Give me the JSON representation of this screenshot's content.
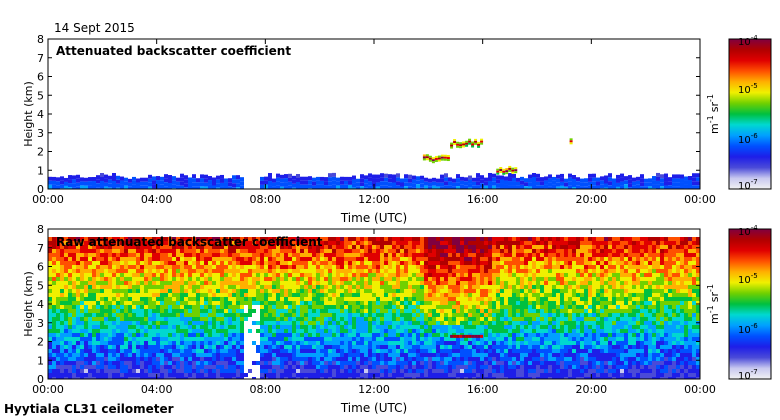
{
  "header": {
    "date": "14 Sept 2015"
  },
  "footer": {
    "site": "Hyytiala CL31 ceilometer"
  },
  "colormap": [
    "#f2f2f2",
    "#c8c8f0",
    "#4a4ad8",
    "#1e1ee8",
    "#0050ff",
    "#00a0ff",
    "#00d8d0",
    "#00c040",
    "#70d000",
    "#f0f000",
    "#ffb000",
    "#ff5000",
    "#e00000",
    "#b00000",
    "#800040"
  ],
  "chart_data": [
    {
      "type": "heatmap",
      "title": "Attenuated backscatter coefficient",
      "xlabel": "Time (UTC)",
      "ylabel": "Height (km)",
      "x_ticks": [
        "00:00",
        "04:00",
        "08:00",
        "12:00",
        "16:00",
        "20:00",
        "00:00"
      ],
      "y_ticks": [
        "0",
        "1",
        "2",
        "3",
        "4",
        "5",
        "6",
        "7",
        "8"
      ],
      "ylim": [
        0,
        8
      ],
      "xlim_hours": [
        0,
        24
      ],
      "colorbar": {
        "label_unit": "m",
        "label_unit_exp": "-1",
        "label_sr": "sr",
        "label_sr_exp": "-1",
        "ticks": [
          "10",
          "10",
          "10",
          "10"
        ],
        "tick_exps": [
          "-7",
          "-6",
          "-5",
          "-4"
        ],
        "scale": "log",
        "range": [
          "1e-7",
          "1e-4"
        ]
      },
      "features": [
        {
          "kind": "boundary-layer",
          "height_km": 0.7,
          "hours": [
            0,
            24
          ]
        },
        {
          "kind": "cloud",
          "height_km": 2.4,
          "hours": [
            14.8,
            16.0
          ]
        },
        {
          "kind": "cloud",
          "height_km": 1.6,
          "hours": [
            13.8,
            14.7
          ]
        },
        {
          "kind": "cloud",
          "height_km": 1.0,
          "hours": [
            16.5,
            17.2
          ]
        },
        {
          "kind": "cloud",
          "height_km": 2.5,
          "hours": [
            19.2,
            19.3
          ]
        }
      ]
    },
    {
      "type": "heatmap",
      "title": "Raw attenuated backscatter coefficient",
      "xlabel": "Time (UTC)",
      "ylabel": "Height (km)",
      "x_ticks": [
        "00:00",
        "04:00",
        "08:00",
        "12:00",
        "16:00",
        "20:00",
        "00:00"
      ],
      "y_ticks": [
        "0",
        "1",
        "2",
        "3",
        "4",
        "5",
        "6",
        "7",
        "8"
      ],
      "ylim": [
        0,
        8
      ],
      "xlim_hours": [
        0,
        24
      ],
      "colorbar": {
        "label_unit": "m",
        "label_unit_exp": "-1",
        "label_sr": "sr",
        "label_sr_exp": "-1",
        "ticks": [
          "10",
          "10",
          "10",
          "10"
        ],
        "tick_exps": [
          "-7",
          "-6",
          "-5",
          "-4"
        ],
        "scale": "log",
        "range": [
          "1e-7",
          "1e-4"
        ]
      },
      "features": [
        {
          "kind": "noise-gradient",
          "hours": [
            0,
            24
          ]
        },
        {
          "kind": "cloud",
          "height_km": 2.3,
          "hours": [
            14.8,
            16.0
          ]
        },
        {
          "kind": "precip-gap",
          "hours": [
            7.2,
            7.8
          ]
        }
      ]
    }
  ]
}
